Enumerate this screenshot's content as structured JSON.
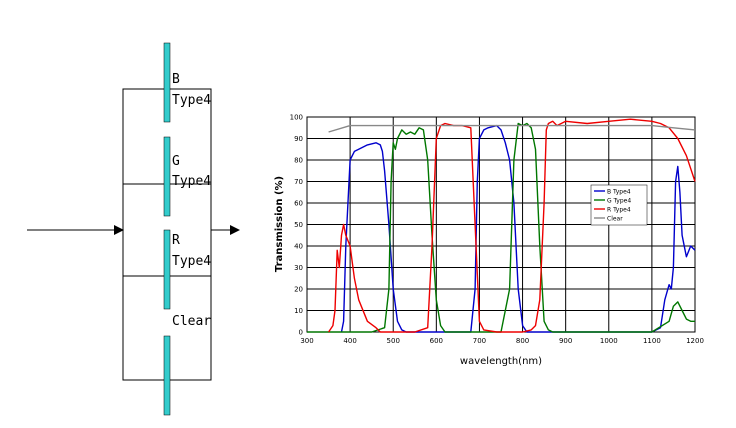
{
  "diagram": {
    "filters": [
      {
        "name": "B",
        "type": "Type4"
      },
      {
        "name": "G",
        "type": "Type4"
      },
      {
        "name": "R",
        "type": "Type4"
      },
      {
        "name": "Clear",
        "type": ""
      }
    ],
    "filter_color": "#33cccc"
  },
  "chart_data": {
    "type": "line",
    "xlabel": "wavelength(nm)",
    "ylabel": "Transmission (%)",
    "xlim": [
      300,
      1200
    ],
    "ylim": [
      0,
      100
    ],
    "xticks": [
      300,
      400,
      500,
      600,
      700,
      800,
      900,
      1000,
      1100,
      1200
    ],
    "yticks": [
      0,
      10,
      20,
      30,
      40,
      50,
      60,
      70,
      80,
      90,
      100
    ],
    "grid": true,
    "legend": "center-right",
    "series": [
      {
        "name": "B Type4",
        "color": "#0000cc",
        "x": [
          380,
          385,
          390,
          400,
          410,
          420,
          440,
          460,
          470,
          475,
          480,
          490,
          500,
          510,
          520,
          530,
          540,
          560,
          600,
          650,
          680,
          690,
          695,
          700,
          710,
          720,
          740,
          750,
          760,
          770,
          780,
          790,
          800,
          810,
          820,
          900,
          1000,
          1100,
          1120,
          1130,
          1140,
          1145,
          1150,
          1155,
          1160,
          1165,
          1170,
          1180,
          1190,
          1200
        ],
        "y": [
          0,
          5,
          40,
          80,
          84,
          85,
          87,
          88,
          87,
          84,
          75,
          50,
          20,
          5,
          1,
          0,
          0,
          0,
          0,
          0,
          0,
          20,
          70,
          90,
          94,
          95,
          96,
          94,
          88,
          80,
          60,
          20,
          3,
          0,
          0,
          0,
          0,
          0,
          2,
          15,
          22,
          20,
          30,
          70,
          77,
          65,
          45,
          35,
          40,
          38
        ]
      },
      {
        "name": "G Type4",
        "color": "#007700",
        "x": [
          300,
          450,
          480,
          490,
          495,
          500,
          505,
          510,
          520,
          530,
          540,
          550,
          560,
          570,
          580,
          590,
          600,
          610,
          620,
          650,
          700,
          750,
          770,
          780,
          790,
          800,
          810,
          820,
          830,
          840,
          850,
          860,
          870,
          900,
          1000,
          1100,
          1140,
          1150,
          1160,
          1170,
          1180,
          1190,
          1200
        ],
        "y": [
          0,
          0,
          2,
          20,
          70,
          88,
          85,
          90,
          94,
          92,
          93,
          92,
          95,
          94,
          80,
          45,
          15,
          3,
          0,
          0,
          0,
          0,
          20,
          80,
          97,
          96,
          97,
          95,
          85,
          40,
          5,
          1,
          0,
          0,
          0,
          0,
          5,
          12,
          14,
          10,
          6,
          5,
          5
        ]
      },
      {
        "name": "R Type4",
        "color": "#ee0000",
        "x": [
          350,
          360,
          365,
          370,
          375,
          380,
          385,
          390,
          400,
          410,
          420,
          440,
          460,
          470,
          480,
          500,
          550,
          580,
          590,
          600,
          610,
          620,
          640,
          660,
          680,
          690,
          700,
          710,
          740,
          750,
          760,
          800,
          820,
          830,
          840,
          850,
          855,
          860,
          870,
          880,
          900,
          950,
          1000,
          1050,
          1100,
          1120,
          1140,
          1160,
          1180,
          1200
        ],
        "y": [
          0,
          3,
          10,
          38,
          30,
          45,
          50,
          45,
          40,
          25,
          15,
          5,
          2,
          0,
          0,
          0,
          0,
          2,
          40,
          90,
          96,
          97,
          96,
          96,
          95,
          50,
          5,
          1,
          0,
          0,
          0,
          0,
          1,
          3,
          15,
          60,
          94,
          97,
          98,
          96,
          98,
          97,
          98,
          99,
          98,
          97,
          95,
          90,
          82,
          70
        ]
      },
      {
        "name": "Clear",
        "color": "#888888",
        "x": [
          350,
          400,
          500,
          600,
          700,
          800,
          900,
          1000,
          1100,
          1150,
          1200
        ],
        "y": [
          93,
          96,
          96,
          96,
          96,
          96,
          96,
          96,
          96,
          95,
          94
        ]
      }
    ]
  }
}
